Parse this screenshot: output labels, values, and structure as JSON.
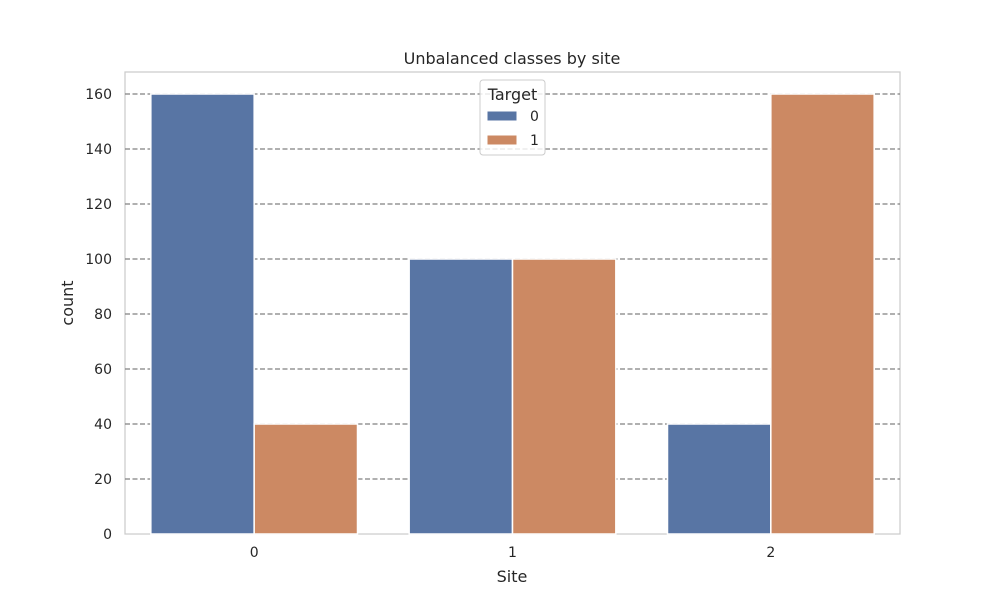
{
  "chart_data": {
    "type": "bar",
    "title": "Unbalanced classes by site",
    "xlabel": "Site",
    "ylabel": "count",
    "categories": [
      "0",
      "1",
      "2"
    ],
    "series": [
      {
        "name": "0",
        "values": [
          160,
          100,
          40
        ],
        "color": "#5875a4"
      },
      {
        "name": "1",
        "values": [
          40,
          100,
          160
        ],
        "color": "#cc8963"
      }
    ],
    "ylim": [
      0,
      168
    ],
    "yticks": [
      0,
      20,
      40,
      60,
      80,
      100,
      120,
      140,
      160
    ],
    "grid": true,
    "legend": {
      "title": "Target",
      "position": "top-center"
    }
  }
}
